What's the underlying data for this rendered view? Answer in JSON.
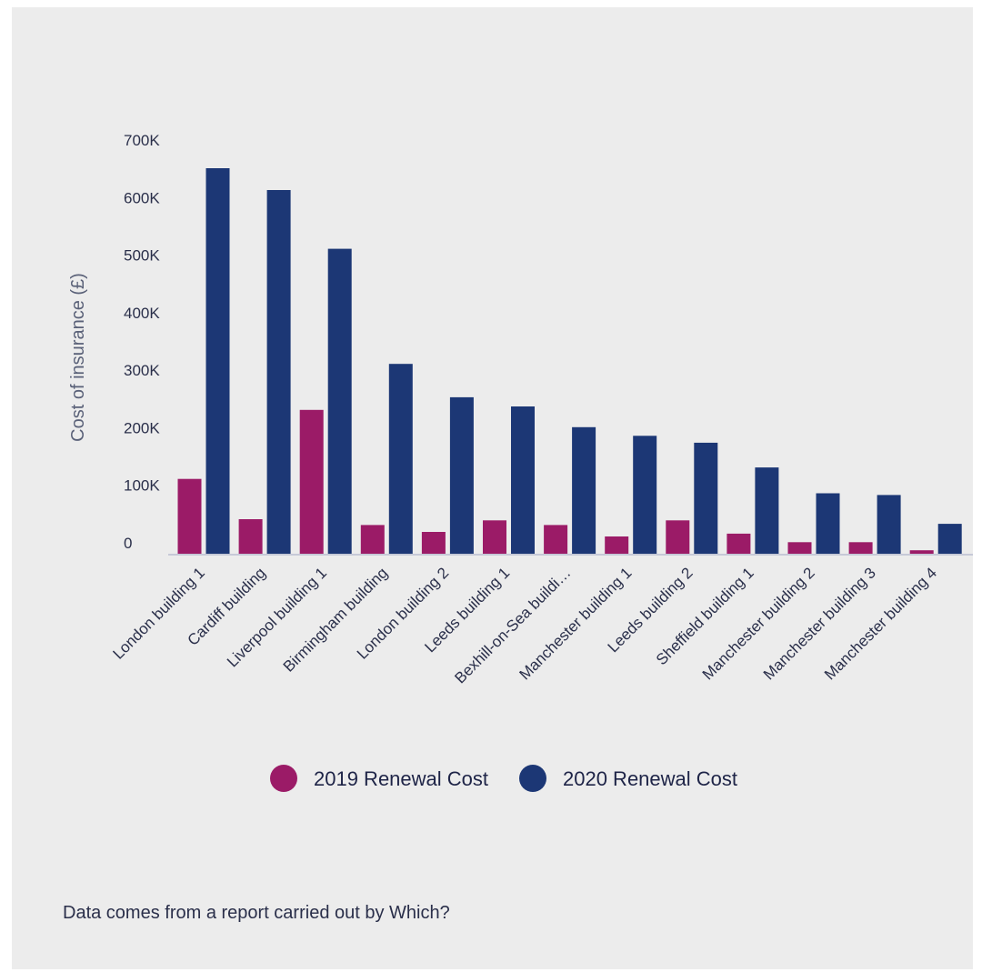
{
  "chart_data": {
    "type": "bar",
    "categories": [
      "London building 1",
      "Cardiff building",
      "Liverpool building 1",
      "Birmingham building",
      "London building 2",
      "Leeds building 1",
      "Bexhill-on-Sea buildi…",
      "Manchester building 1",
      "Leeds building 2",
      "Sheffield building 1",
      "Manchester building 2",
      "Manchester building 3",
      "Manchester building 4"
    ],
    "series": [
      {
        "name": "2019 Renewal Cost",
        "color": "#9b1b67",
        "values": [
          130000,
          60000,
          250000,
          50000,
          38000,
          58000,
          50000,
          30000,
          58000,
          35000,
          20000,
          20000,
          6000
        ]
      },
      {
        "name": "2020 Renewal Cost",
        "color": "#1c3775",
        "values": [
          670000,
          632000,
          530000,
          330000,
          272000,
          256000,
          220000,
          205000,
          193000,
          150000,
          105000,
          102000,
          52000
        ]
      }
    ],
    "ylabel": "Cost of insurance (£)",
    "xlabel": "",
    "ylim": [
      0,
      700000
    ],
    "yticks": [
      {
        "value": 0,
        "label": "0"
      },
      {
        "value": 100000,
        "label": "100K"
      },
      {
        "value": 200000,
        "label": "200K"
      },
      {
        "value": 300000,
        "label": "300K"
      },
      {
        "value": 400000,
        "label": "400K"
      },
      {
        "value": 500000,
        "label": "500K"
      },
      {
        "value": 600000,
        "label": "600K"
      },
      {
        "value": 700000,
        "label": "700K"
      }
    ],
    "grid": false,
    "legend_position": "bottom"
  },
  "footnote": "Data comes from a report carried out by Which?"
}
